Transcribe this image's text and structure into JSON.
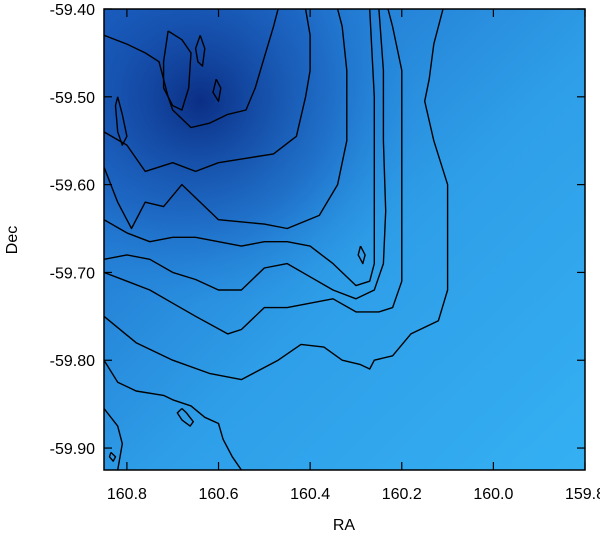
{
  "chart_data": {
    "type": "heatmap",
    "xlabel": "RA",
    "ylabel": "Dec",
    "xlim": [
      160.85,
      159.8
    ],
    "ylim": [
      -59.925,
      -59.4
    ],
    "x_reversed": true,
    "xticks": [
      {
        "value": 160.8,
        "label": "160.8"
      },
      {
        "value": 160.6,
        "label": "160.6"
      },
      {
        "value": 160.4,
        "label": "160.4"
      },
      {
        "value": 160.2,
        "label": "160.2"
      },
      {
        "value": 160.0,
        "label": "160.0"
      },
      {
        "value": 159.8,
        "label": "159.8"
      }
    ],
    "yticks": [
      {
        "value": -59.4,
        "label": "-59.40"
      },
      {
        "value": -59.5,
        "label": "-59.50"
      },
      {
        "value": -59.6,
        "label": "-59.60"
      },
      {
        "value": -59.7,
        "label": "-59.70"
      },
      {
        "value": -59.8,
        "label": "-59.80"
      },
      {
        "value": -59.9,
        "label": "-59.90"
      }
    ],
    "colors": {
      "low": "#35b0f3",
      "mid": "#1f7fd6",
      "high": "#0a2a80",
      "contour": "#000000",
      "frame": "#000000"
    },
    "colormap": "blue (light = low, dark = high)",
    "contours": [
      {
        "level": 1,
        "points": [
          [
            160.85,
            -59.855
          ],
          [
            160.82,
            -59.875
          ],
          [
            160.81,
            -59.895
          ],
          [
            160.82,
            -59.925
          ]
        ]
      },
      {
        "level": 2,
        "points": [
          [
            160.85,
            -59.8
          ],
          [
            160.82,
            -59.825
          ],
          [
            160.78,
            -59.835
          ],
          [
            160.72,
            -59.84
          ],
          [
            160.7,
            -59.845
          ],
          [
            160.66,
            -59.852
          ],
          [
            160.63,
            -59.865
          ],
          [
            160.6,
            -59.872
          ],
          [
            160.59,
            -59.89
          ],
          [
            160.57,
            -59.91
          ],
          [
            160.55,
            -59.925
          ]
        ]
      },
      {
        "level": 2,
        "points": [
          [
            160.68,
            -59.855
          ],
          [
            160.67,
            -59.86
          ],
          [
            160.655,
            -59.87
          ],
          [
            160.662,
            -59.875
          ],
          [
            160.68,
            -59.868
          ],
          [
            160.69,
            -59.86
          ],
          [
            160.68,
            -59.855
          ]
        ]
      },
      {
        "level": 3,
        "points": [
          [
            160.85,
            -59.75
          ],
          [
            160.78,
            -59.78
          ],
          [
            160.7,
            -59.8
          ],
          [
            160.62,
            -59.815
          ],
          [
            160.55,
            -59.822
          ],
          [
            160.47,
            -59.8
          ],
          [
            160.42,
            -59.782
          ],
          [
            160.37,
            -59.785
          ],
          [
            160.33,
            -59.8
          ],
          [
            160.29,
            -59.805
          ],
          [
            160.27,
            -59.81
          ],
          [
            160.26,
            -59.8
          ],
          [
            160.22,
            -59.795
          ],
          [
            160.18,
            -59.77
          ],
          [
            160.12,
            -59.755
          ],
          [
            160.1,
            -59.72
          ],
          [
            160.1,
            -59.67
          ],
          [
            160.1,
            -59.6
          ],
          [
            160.13,
            -59.55
          ],
          [
            160.15,
            -59.505
          ],
          [
            160.14,
            -59.48
          ],
          [
            160.13,
            -59.44
          ],
          [
            160.12,
            -59.42
          ],
          [
            160.11,
            -59.4
          ]
        ]
      },
      {
        "level": 4,
        "points": [
          [
            160.85,
            -59.7
          ],
          [
            160.8,
            -59.71
          ],
          [
            160.75,
            -59.72
          ],
          [
            160.7,
            -59.735
          ],
          [
            160.65,
            -59.75
          ],
          [
            160.58,
            -59.77
          ],
          [
            160.55,
            -59.765
          ],
          [
            160.5,
            -59.74
          ],
          [
            160.45,
            -59.74
          ],
          [
            160.4,
            -59.735
          ],
          [
            160.35,
            -59.73
          ],
          [
            160.3,
            -59.745
          ],
          [
            160.25,
            -59.745
          ],
          [
            160.22,
            -59.74
          ],
          [
            160.2,
            -59.71
          ],
          [
            160.2,
            -59.65
          ],
          [
            160.2,
            -59.55
          ],
          [
            160.2,
            -59.47
          ],
          [
            160.22,
            -59.42
          ],
          [
            160.23,
            -59.4
          ]
        ]
      },
      {
        "level": 5,
        "points": [
          [
            160.85,
            -59.685
          ],
          [
            160.8,
            -59.68
          ],
          [
            160.75,
            -59.685
          ],
          [
            160.7,
            -59.7
          ],
          [
            160.65,
            -59.708
          ],
          [
            160.6,
            -59.72
          ],
          [
            160.55,
            -59.72
          ],
          [
            160.5,
            -59.695
          ],
          [
            160.45,
            -59.69
          ],
          [
            160.4,
            -59.705
          ],
          [
            160.35,
            -59.72
          ],
          [
            160.3,
            -59.73
          ],
          [
            160.26,
            -59.72
          ],
          [
            160.24,
            -59.69
          ],
          [
            160.235,
            -59.63
          ],
          [
            160.24,
            -59.55
          ],
          [
            160.24,
            -59.47
          ],
          [
            160.25,
            -59.4
          ]
        ]
      },
      {
        "level": 6,
        "points": [
          [
            160.85,
            -59.64
          ],
          [
            160.8,
            -59.655
          ],
          [
            160.75,
            -59.665
          ],
          [
            160.7,
            -59.66
          ],
          [
            160.65,
            -59.66
          ],
          [
            160.6,
            -59.665
          ],
          [
            160.55,
            -59.67
          ],
          [
            160.5,
            -59.665
          ],
          [
            160.45,
            -59.665
          ],
          [
            160.4,
            -59.67
          ],
          [
            160.35,
            -59.69
          ],
          [
            160.3,
            -59.715
          ],
          [
            160.27,
            -59.71
          ],
          [
            160.26,
            -59.69
          ],
          [
            160.26,
            -59.6
          ],
          [
            160.26,
            -59.5
          ],
          [
            160.27,
            -59.4
          ]
        ]
      },
      {
        "level": 7,
        "points": [
          [
            160.85,
            -59.58
          ],
          [
            160.82,
            -59.62
          ],
          [
            160.79,
            -59.65
          ],
          [
            160.76,
            -59.62
          ],
          [
            160.72,
            -59.625
          ],
          [
            160.68,
            -59.6
          ],
          [
            160.65,
            -59.615
          ],
          [
            160.6,
            -59.64
          ],
          [
            160.5,
            -59.645
          ],
          [
            160.45,
            -59.65
          ],
          [
            160.38,
            -59.635
          ],
          [
            160.34,
            -59.6
          ],
          [
            160.32,
            -59.55
          ],
          [
            160.32,
            -59.47
          ],
          [
            160.33,
            -59.42
          ],
          [
            160.34,
            -59.4
          ]
        ]
      },
      {
        "level": 7,
        "points": [
          [
            160.29,
            -59.67
          ],
          [
            160.28,
            -59.68
          ],
          [
            160.285,
            -59.69
          ],
          [
            160.295,
            -59.68
          ],
          [
            160.29,
            -59.67
          ]
        ]
      },
      {
        "level": 8,
        "points": [
          [
            160.85,
            -59.54
          ],
          [
            160.8,
            -59.555
          ],
          [
            160.76,
            -59.585
          ],
          [
            160.7,
            -59.575
          ],
          [
            160.65,
            -59.585
          ],
          [
            160.6,
            -59.575
          ],
          [
            160.54,
            -59.57
          ],
          [
            160.48,
            -59.565
          ],
          [
            160.43,
            -59.545
          ],
          [
            160.41,
            -59.5
          ],
          [
            160.4,
            -59.47
          ],
          [
            160.4,
            -59.43
          ],
          [
            160.41,
            -59.4
          ]
        ]
      },
      {
        "level": 9,
        "points": [
          [
            160.85,
            -59.43
          ],
          [
            160.8,
            -59.44
          ],
          [
            160.76,
            -59.45
          ],
          [
            160.73,
            -59.46
          ],
          [
            160.72,
            -59.48
          ],
          [
            160.71,
            -59.5
          ],
          [
            160.7,
            -59.515
          ],
          [
            160.66,
            -59.535
          ],
          [
            160.62,
            -59.53
          ],
          [
            160.58,
            -59.52
          ],
          [
            160.54,
            -59.515
          ],
          [
            160.52,
            -59.49
          ],
          [
            160.5,
            -59.455
          ],
          [
            160.48,
            -59.42
          ],
          [
            160.47,
            -59.4
          ]
        ]
      },
      {
        "level": 10,
        "points": [
          [
            160.82,
            -59.5
          ],
          [
            160.81,
            -59.52
          ],
          [
            160.8,
            -59.545
          ],
          [
            160.81,
            -59.555
          ],
          [
            160.82,
            -59.54
          ],
          [
            160.825,
            -59.51
          ],
          [
            160.82,
            -59.5
          ]
        ]
      },
      {
        "level": 10,
        "points": [
          [
            160.71,
            -59.425
          ],
          [
            160.68,
            -59.435
          ],
          [
            160.66,
            -59.45
          ],
          [
            160.665,
            -59.49
          ],
          [
            160.68,
            -59.515
          ],
          [
            160.7,
            -59.51
          ],
          [
            160.72,
            -59.49
          ],
          [
            160.72,
            -59.46
          ],
          [
            160.71,
            -59.425
          ]
        ]
      },
      {
        "level": 11,
        "points": [
          [
            160.64,
            -59.43
          ],
          [
            160.63,
            -59.445
          ],
          [
            160.635,
            -59.465
          ],
          [
            160.645,
            -59.46
          ],
          [
            160.65,
            -59.445
          ],
          [
            160.64,
            -59.43
          ]
        ]
      },
      {
        "level": 11,
        "points": [
          [
            160.605,
            -59.48
          ],
          [
            160.595,
            -59.49
          ],
          [
            160.6,
            -59.505
          ],
          [
            160.612,
            -59.495
          ],
          [
            160.605,
            -59.48
          ]
        ]
      },
      {
        "level": 11,
        "points": [
          [
            160.835,
            -59.905
          ],
          [
            160.825,
            -59.91
          ],
          [
            160.83,
            -59.915
          ],
          [
            160.838,
            -59.91
          ],
          [
            160.835,
            -59.905
          ]
        ]
      }
    ]
  }
}
